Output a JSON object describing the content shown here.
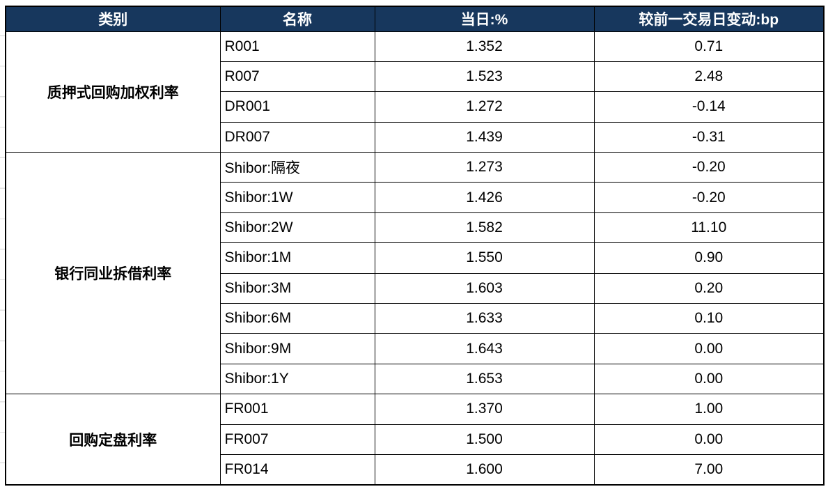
{
  "colors": {
    "header_bg": "#17375D",
    "category_bg": "#C00000",
    "border_color": "#000000",
    "text_light": "#FFFFFF",
    "text_dark": "#000000"
  },
  "chart_data": {
    "type": "table",
    "title": "",
    "columns": [
      "类别",
      "名称",
      "当日:%",
      "较前一交易日变动:bp"
    ],
    "rows": [
      [
        "质押式回购加权利率",
        "R001",
        "1.352",
        "0.71"
      ],
      [
        "质押式回购加权利率",
        "R007",
        "1.523",
        "2.48"
      ],
      [
        "质押式回购加权利率",
        "DR001",
        "1.272",
        "-0.14"
      ],
      [
        "质押式回购加权利率",
        "DR007",
        "1.439",
        "-0.31"
      ],
      [
        "银行同业拆借利率",
        "Shibor:隔夜",
        "1.273",
        "-0.20"
      ],
      [
        "银行同业拆借利率",
        "Shibor:1W",
        "1.426",
        "-0.20"
      ],
      [
        "银行同业拆借利率",
        "Shibor:2W",
        "1.582",
        "11.10"
      ],
      [
        "银行同业拆借利率",
        "Shibor:1M",
        "1.550",
        "0.90"
      ],
      [
        "银行同业拆借利率",
        "Shibor:3M",
        "1.603",
        "0.20"
      ],
      [
        "银行同业拆借利率",
        "Shibor:6M",
        "1.633",
        "0.10"
      ],
      [
        "银行同业拆借利率",
        "Shibor:9M",
        "1.643",
        "0.00"
      ],
      [
        "银行同业拆借利率",
        "Shibor:1Y",
        "1.653",
        "0.00"
      ],
      [
        "回购定盘利率",
        "FR001",
        "1.370",
        "1.00"
      ],
      [
        "回购定盘利率",
        "FR007",
        "1.500",
        "0.00"
      ],
      [
        "回购定盘利率",
        "FR014",
        "1.600",
        "7.00"
      ]
    ],
    "layout_hints": {
      "category_column_merged": true,
      "grid": "all-borders",
      "header_style": "dark-navy-bold-white",
      "category_style": "red-bold-white"
    }
  }
}
